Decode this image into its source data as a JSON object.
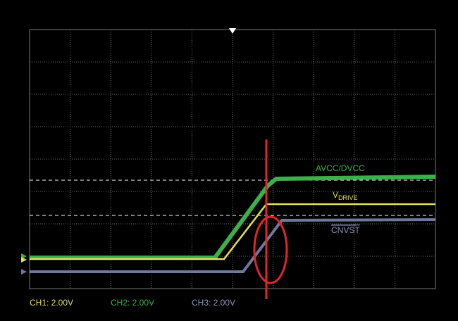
{
  "traces": [
    {
      "label": "AVCC/DVCC"
    },
    {
      "label": "V",
      "subscript": "DRIVE"
    },
    {
      "label": "CNVST"
    }
  ],
  "channels": [
    "CH1: 2.00V",
    "CH2: 2.00V",
    "CH3: 2.00V"
  ]
}
